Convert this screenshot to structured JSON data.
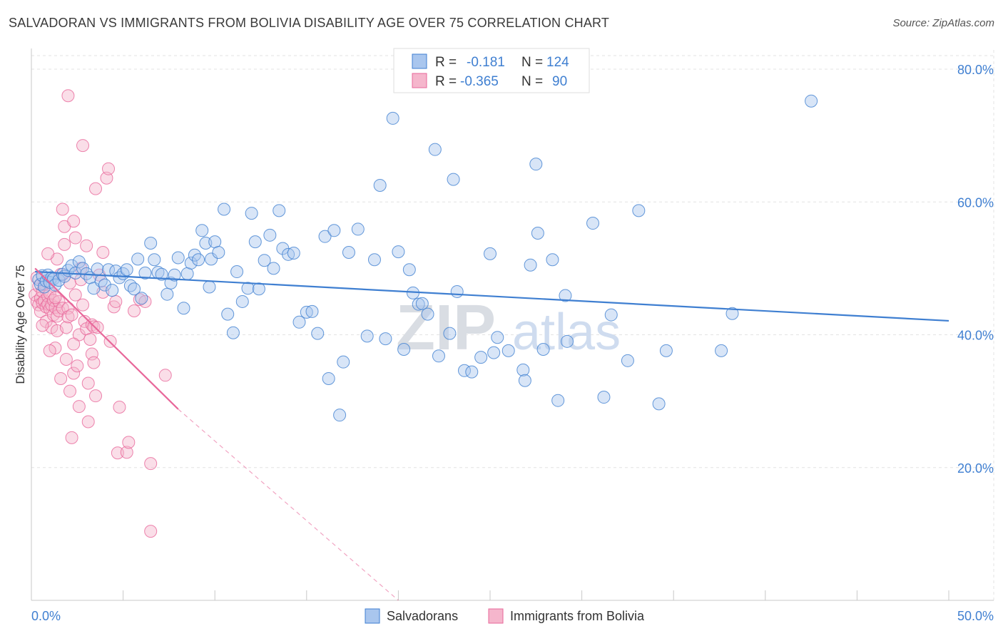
{
  "title": "SALVADORAN VS IMMIGRANTS FROM BOLIVIA DISABILITY AGE OVER 75 CORRELATION CHART",
  "source": "Source: ZipAtlas.com",
  "watermark": {
    "zip": "ZIP",
    "atlas": "atlas"
  },
  "colors": {
    "blue": "#3f7fd1",
    "blue_fill": "#a9c6ee",
    "pink": "#e8679a",
    "pink_fill": "#f5b6cc",
    "grid": "#e3e3e3"
  },
  "legend": {
    "rows": [
      {
        "r_label": "R =",
        "r_value": "-0.181",
        "n_label": "N =",
        "n_value": "124"
      },
      {
        "r_label": "R =",
        "r_value": "-0.365",
        "n_label": "N =",
        "n_value": "90"
      }
    ]
  },
  "chart_data": {
    "type": "scatter",
    "title": "SALVADORAN VS IMMIGRANTS FROM BOLIVIA DISABILITY AGE OVER 75 CORRELATION CHART",
    "xlabel": "",
    "ylabel": "Disability Age Over 75",
    "xlim": [
      0,
      50
    ],
    "ylim": [
      0,
      83
    ],
    "x_tick_labels": [
      "0.0%",
      "50.0%"
    ],
    "y_ticks": [
      20,
      40,
      60,
      80
    ],
    "y_tick_labels": [
      "20.0%",
      "40.0%",
      "60.0%",
      "80.0%"
    ],
    "grid": true,
    "legend_position": "top-center",
    "series": [
      {
        "name": "Salvadorans",
        "color": "#3f7fd1",
        "r": -0.181,
        "n": 124,
        "trendline": {
          "x": [
            0.2,
            50
          ],
          "y": [
            49.5,
            42.1
          ]
        },
        "points": [
          [
            0.4,
            48.3
          ],
          [
            0.5,
            47.6
          ],
          [
            0.6,
            48.9
          ],
          [
            0.7,
            47.2
          ],
          [
            0.8,
            48.1
          ],
          [
            0.9,
            49.0
          ],
          [
            1.0,
            47.9
          ],
          [
            1.1,
            48.6
          ],
          [
            1.2,
            48.4
          ],
          [
            1.3,
            47.5
          ],
          [
            1.5,
            48.2
          ],
          [
            1.7,
            49.1
          ],
          [
            1.8,
            48.8
          ],
          [
            2.0,
            49.7
          ],
          [
            2.2,
            50.4
          ],
          [
            2.4,
            49.3
          ],
          [
            2.6,
            51.0
          ],
          [
            2.8,
            50.0
          ],
          [
            3.0,
            49.2
          ],
          [
            3.2,
            48.6
          ],
          [
            3.4,
            47.0
          ],
          [
            3.6,
            49.9
          ],
          [
            3.8,
            48.1
          ],
          [
            4.0,
            47.5
          ],
          [
            4.2,
            49.8
          ],
          [
            4.4,
            46.7
          ],
          [
            4.6,
            49.6
          ],
          [
            4.8,
            48.6
          ],
          [
            5.0,
            49.2
          ],
          [
            5.2,
            49.8
          ],
          [
            5.4,
            47.4
          ],
          [
            5.6,
            46.9
          ],
          [
            5.8,
            51.4
          ],
          [
            6.0,
            45.5
          ],
          [
            6.2,
            49.3
          ],
          [
            6.5,
            53.8
          ],
          [
            6.7,
            51.3
          ],
          [
            6.9,
            49.4
          ],
          [
            7.1,
            49.1
          ],
          [
            7.4,
            46.1
          ],
          [
            7.6,
            47.8
          ],
          [
            7.8,
            49.0
          ],
          [
            8.0,
            51.6
          ],
          [
            8.3,
            44.0
          ],
          [
            8.5,
            49.2
          ],
          [
            8.7,
            50.8
          ],
          [
            8.9,
            52.0
          ],
          [
            9.1,
            51.3
          ],
          [
            9.3,
            55.7
          ],
          [
            9.5,
            53.8
          ],
          [
            9.7,
            47.2
          ],
          [
            9.8,
            51.4
          ],
          [
            10.0,
            54.0
          ],
          [
            10.2,
            52.4
          ],
          [
            10.5,
            58.9
          ],
          [
            10.7,
            43.1
          ],
          [
            11.0,
            40.3
          ],
          [
            11.2,
            49.5
          ],
          [
            11.5,
            45.0
          ],
          [
            11.8,
            47.0
          ],
          [
            12.0,
            58.3
          ],
          [
            12.2,
            54.0
          ],
          [
            12.4,
            46.9
          ],
          [
            12.7,
            51.2
          ],
          [
            13.0,
            55.0
          ],
          [
            13.2,
            50.0
          ],
          [
            13.5,
            58.7
          ],
          [
            13.7,
            53.0
          ],
          [
            14.0,
            52.1
          ],
          [
            14.3,
            52.3
          ],
          [
            14.6,
            41.9
          ],
          [
            15.0,
            43.4
          ],
          [
            15.3,
            43.5
          ],
          [
            15.6,
            40.2
          ],
          [
            16.0,
            54.8
          ],
          [
            16.2,
            33.4
          ],
          [
            16.5,
            55.7
          ],
          [
            16.8,
            27.9
          ],
          [
            17.0,
            35.9
          ],
          [
            17.3,
            52.4
          ],
          [
            17.8,
            55.9
          ],
          [
            18.3,
            39.8
          ],
          [
            18.7,
            51.3
          ],
          [
            19.0,
            62.5
          ],
          [
            19.3,
            39.4
          ],
          [
            19.7,
            72.6
          ],
          [
            20.0,
            52.5
          ],
          [
            20.3,
            37.8
          ],
          [
            20.6,
            49.8
          ],
          [
            20.8,
            46.3
          ],
          [
            21.1,
            44.6
          ],
          [
            21.3,
            44.7
          ],
          [
            21.6,
            43.1
          ],
          [
            22.0,
            67.9
          ],
          [
            22.2,
            36.8
          ],
          [
            22.8,
            40.2
          ],
          [
            23.0,
            63.4
          ],
          [
            23.2,
            46.5
          ],
          [
            23.6,
            34.6
          ],
          [
            24.0,
            34.4
          ],
          [
            24.5,
            36.6
          ],
          [
            25.0,
            52.2
          ],
          [
            25.2,
            37.3
          ],
          [
            25.4,
            39.6
          ],
          [
            26.0,
            37.6
          ],
          [
            26.8,
            34.7
          ],
          [
            26.9,
            33.1
          ],
          [
            27.2,
            50.5
          ],
          [
            27.5,
            65.7
          ],
          [
            27.6,
            55.3
          ],
          [
            27.9,
            37.8
          ],
          [
            28.4,
            51.3
          ],
          [
            28.7,
            30.1
          ],
          [
            29.1,
            45.9
          ],
          [
            29.2,
            39.0
          ],
          [
            30.6,
            56.8
          ],
          [
            31.2,
            30.6
          ],
          [
            31.6,
            43.0
          ],
          [
            32.5,
            36.1
          ],
          [
            33.1,
            58.7
          ],
          [
            34.2,
            29.6
          ],
          [
            34.6,
            37.6
          ],
          [
            37.6,
            37.6
          ],
          [
            38.2,
            43.2
          ],
          [
            42.5,
            75.2
          ]
        ]
      },
      {
        "name": "Immigrants from Bolivia",
        "color": "#e8679a",
        "r": -0.365,
        "n": 90,
        "trendline": {
          "x": [
            0.2,
            8
          ],
          "y": [
            50.0,
            28.8
          ]
        },
        "trendline_extension": {
          "x": [
            8,
            20
          ],
          "y": [
            28.8,
            0
          ]
        },
        "points": [
          [
            0.2,
            46.0
          ],
          [
            0.3,
            45.0
          ],
          [
            0.3,
            48.6
          ],
          [
            0.4,
            47.3
          ],
          [
            0.4,
            44.5
          ],
          [
            0.5,
            45.5
          ],
          [
            0.5,
            43.5
          ],
          [
            0.6,
            44.8
          ],
          [
            0.6,
            46.5
          ],
          [
            0.7,
            45.1
          ],
          [
            0.7,
            47.6
          ],
          [
            0.8,
            44.2
          ],
          [
            0.8,
            42.0
          ],
          [
            0.9,
            45.8
          ],
          [
            0.9,
            44.6
          ],
          [
            1.0,
            43.9
          ],
          [
            1.0,
            46.2
          ],
          [
            1.1,
            41.1
          ],
          [
            1.1,
            44.5
          ],
          [
            1.2,
            43.0
          ],
          [
            1.2,
            45.2
          ],
          [
            1.3,
            38.0
          ],
          [
            1.3,
            44.1
          ],
          [
            1.4,
            42.8
          ],
          [
            1.4,
            40.6
          ],
          [
            1.5,
            43.6
          ],
          [
            1.5,
            45.0
          ],
          [
            1.6,
            33.4
          ],
          [
            1.6,
            49.1
          ],
          [
            1.7,
            44.0
          ],
          [
            1.7,
            58.9
          ],
          [
            1.8,
            56.3
          ],
          [
            1.8,
            53.6
          ],
          [
            1.9,
            41.1
          ],
          [
            1.9,
            36.3
          ],
          [
            2.0,
            44.0
          ],
          [
            2.0,
            42.7
          ],
          [
            2.1,
            47.8
          ],
          [
            2.1,
            31.5
          ],
          [
            2.2,
            43.0
          ],
          [
            2.2,
            24.5
          ],
          [
            2.3,
            57.1
          ],
          [
            2.3,
            34.2
          ],
          [
            2.4,
            54.6
          ],
          [
            2.4,
            46.0
          ],
          [
            2.5,
            35.3
          ],
          [
            2.6,
            40.0
          ],
          [
            2.6,
            29.2
          ],
          [
            2.7,
            50.0
          ],
          [
            2.7,
            48.3
          ],
          [
            2.8,
            44.5
          ],
          [
            2.8,
            68.5
          ],
          [
            2.9,
            42.0
          ],
          [
            3.0,
            40.9
          ],
          [
            3.0,
            53.4
          ],
          [
            3.1,
            32.7
          ],
          [
            3.1,
            26.9
          ],
          [
            3.2,
            39.3
          ],
          [
            3.3,
            41.5
          ],
          [
            3.3,
            37.1
          ],
          [
            3.4,
            35.8
          ],
          [
            3.4,
            41.2
          ],
          [
            3.5,
            30.8
          ],
          [
            3.5,
            62.0
          ],
          [
            3.6,
            41.1
          ],
          [
            3.7,
            49.0
          ],
          [
            3.9,
            52.4
          ],
          [
            3.9,
            46.4
          ],
          [
            4.1,
            63.6
          ],
          [
            4.2,
            65.0
          ],
          [
            4.3,
            39.0
          ],
          [
            4.5,
            44.2
          ],
          [
            4.6,
            45.0
          ],
          [
            4.7,
            22.2
          ],
          [
            4.8,
            29.1
          ],
          [
            5.2,
            22.3
          ],
          [
            5.3,
            23.8
          ],
          [
            5.6,
            43.6
          ],
          [
            5.9,
            45.3
          ],
          [
            6.2,
            45.0
          ],
          [
            6.5,
            10.4
          ],
          [
            6.5,
            20.6
          ],
          [
            7.3,
            33.9
          ],
          [
            1.4,
            51.4
          ],
          [
            0.9,
            52.2
          ],
          [
            2.0,
            76.0
          ],
          [
            1.0,
            37.6
          ],
          [
            0.6,
            41.4
          ],
          [
            1.3,
            45.6
          ],
          [
            2.3,
            38.6
          ]
        ]
      }
    ]
  },
  "bottom_legend": [
    "Salvadorans",
    "Immigrants from Bolivia"
  ]
}
